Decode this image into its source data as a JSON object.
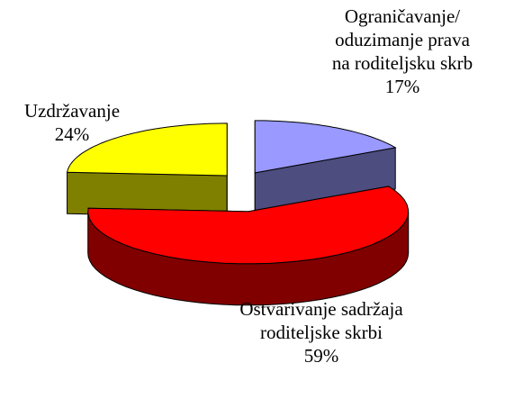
{
  "chart_data": {
    "type": "pie3d",
    "categories": [
      "Ograničavanje/ oduzimanje prava na roditeljsku skrb",
      "Ostvarivanje sadržaja roditeljske skrbi",
      "Uzdržavanje"
    ],
    "values": [
      17,
      59,
      24
    ],
    "value_labels": [
      "17%",
      "59%",
      "24%"
    ],
    "colors": [
      "#9999ff",
      "#ff0000",
      "#ffff00"
    ],
    "side_colors": [
      "#4d4d80",
      "#800000",
      "#808000"
    ]
  }
}
